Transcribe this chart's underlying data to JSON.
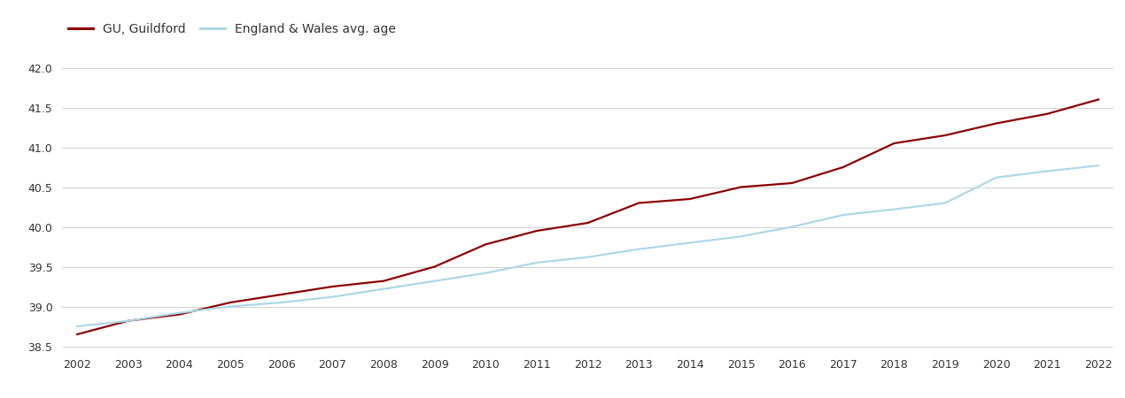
{
  "years": [
    2002,
    2003,
    2004,
    2005,
    2006,
    2007,
    2008,
    2009,
    2010,
    2011,
    2012,
    2013,
    2014,
    2015,
    2016,
    2017,
    2018,
    2019,
    2020,
    2021,
    2022
  ],
  "guildford": [
    38.65,
    38.82,
    38.9,
    39.05,
    39.15,
    39.25,
    39.32,
    39.5,
    39.78,
    39.95,
    40.05,
    40.3,
    40.35,
    40.5,
    40.55,
    40.75,
    41.05,
    41.15,
    41.3,
    41.42,
    41.6
  ],
  "england_wales": [
    38.75,
    38.82,
    38.92,
    39.0,
    39.05,
    39.12,
    39.22,
    39.32,
    39.42,
    39.55,
    39.62,
    39.72,
    39.8,
    39.88,
    40.0,
    40.15,
    40.22,
    40.3,
    40.62,
    40.7,
    40.77
  ],
  "guildford_color": "#8B0000",
  "england_wales_color": "#ADD8E6",
  "legend_guildford": "GU, Guildford",
  "legend_ew": "England & Wales avg. age",
  "ylim_min": 38.45,
  "ylim_max": 42.25,
  "yticks": [
    38.5,
    39.0,
    39.5,
    40.0,
    40.5,
    41.0,
    41.5,
    42.0
  ],
  "background_color": "#ffffff",
  "grid_color": "#d0d0d0",
  "line_width": 1.6
}
